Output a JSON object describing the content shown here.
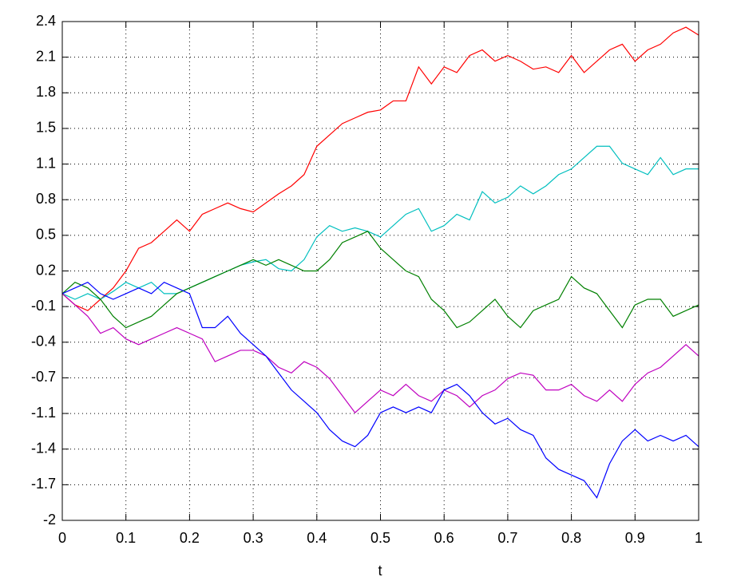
{
  "chart_data": {
    "type": "line",
    "xlabel": "t",
    "x": [
      0,
      0.02,
      0.04,
      0.06,
      0.08,
      0.1,
      0.12,
      0.14,
      0.16,
      0.18,
      0.2,
      0.22,
      0.24,
      0.26,
      0.28,
      0.3,
      0.32,
      0.34,
      0.36,
      0.38,
      0.4,
      0.42,
      0.44,
      0.46,
      0.48,
      0.5,
      0.52,
      0.54,
      0.56,
      0.58,
      0.6,
      0.62,
      0.64,
      0.66,
      0.68,
      0.7,
      0.72,
      0.74,
      0.76,
      0.78,
      0.8,
      0.82,
      0.84,
      0.86,
      0.88,
      0.9,
      0.92,
      0.94,
      0.96,
      0.98,
      1
    ],
    "series": [
      {
        "color": "#ff0000",
        "values": [
          0,
          -0.1,
          -0.15,
          -0.05,
          0.05,
          0.2,
          0.4,
          0.45,
          0.55,
          0.65,
          0.55,
          0.7,
          0.75,
          0.8,
          0.75,
          0.72,
          0.8,
          0.88,
          0.95,
          1.05,
          1.3,
          1.4,
          1.5,
          1.55,
          1.6,
          1.62,
          1.7,
          1.7,
          2.0,
          1.85,
          2.0,
          1.95,
          2.1,
          2.15,
          2.05,
          2.1,
          2.05,
          1.98,
          2.0,
          1.95,
          2.1,
          1.95,
          2.05,
          2.15,
          2.2,
          2.05,
          2.15,
          2.2,
          2.3,
          2.35,
          2.28
        ]
      },
      {
        "color": "#00bfbf",
        "values": [
          0,
          -0.05,
          0,
          -0.05,
          0.02,
          0.1,
          0.05,
          0.1,
          0,
          0,
          0.05,
          0.1,
          0.15,
          0.2,
          0.25,
          0.28,
          0.3,
          0.22,
          0.2,
          0.3,
          0.5,
          0.6,
          0.55,
          0.58,
          0.55,
          0.5,
          0.6,
          0.7,
          0.75,
          0.55,
          0.6,
          0.7,
          0.65,
          0.9,
          0.8,
          0.85,
          0.95,
          0.88,
          0.95,
          1.05,
          1.1,
          1.2,
          1.3,
          1.3,
          1.15,
          1.1,
          1.05,
          1.2,
          1.05,
          1.1,
          1.1
        ]
      },
      {
        "color": "#008000",
        "values": [
          0,
          0.1,
          0.05,
          -0.05,
          -0.2,
          -0.3,
          -0.25,
          -0.2,
          -0.1,
          0,
          0.05,
          0.1,
          0.15,
          0.2,
          0.25,
          0.3,
          0.25,
          0.3,
          0.25,
          0.2,
          0.2,
          0.3,
          0.45,
          0.5,
          0.55,
          0.4,
          0.3,
          0.2,
          0.15,
          -0.05,
          -0.15,
          -0.3,
          -0.25,
          -0.15,
          -0.05,
          -0.2,
          -0.3,
          -0.15,
          -0.1,
          -0.05,
          0.15,
          0.05,
          0,
          -0.15,
          -0.3,
          -0.1,
          -0.05,
          -0.05,
          -0.2,
          -0.15,
          -0.1
        ]
      },
      {
        "color": "#bf00bf",
        "values": [
          0,
          -0.1,
          -0.2,
          -0.35,
          -0.3,
          -0.4,
          -0.45,
          -0.4,
          -0.35,
          -0.3,
          -0.35,
          -0.4,
          -0.6,
          -0.55,
          -0.5,
          -0.5,
          -0.55,
          -0.65,
          -0.7,
          -0.6,
          -0.65,
          -0.75,
          -0.9,
          -1.05,
          -0.95,
          -0.85,
          -0.9,
          -0.8,
          -0.9,
          -0.95,
          -0.85,
          -0.9,
          -1.0,
          -0.9,
          -0.85,
          -0.75,
          -0.7,
          -0.72,
          -0.85,
          -0.85,
          -0.8,
          -0.9,
          -0.95,
          -0.85,
          -0.95,
          -0.8,
          -0.7,
          -0.65,
          -0.55,
          -0.45,
          -0.55
        ]
      },
      {
        "color": "#0000ff",
        "values": [
          0,
          0.05,
          0.1,
          0,
          -0.05,
          0,
          0.05,
          0,
          0.1,
          0.05,
          0,
          -0.3,
          -0.3,
          -0.2,
          -0.35,
          -0.45,
          -0.55,
          -0.7,
          -0.85,
          -0.95,
          -1.05,
          -1.2,
          -1.3,
          -1.35,
          -1.25,
          -1.05,
          -1.0,
          -1.05,
          -1.0,
          -1.05,
          -0.85,
          -0.8,
          -0.9,
          -1.05,
          -1.15,
          -1.1,
          -1.2,
          -1.25,
          -1.45,
          -1.55,
          -1.6,
          -1.65,
          -1.8,
          -1.5,
          -1.3,
          -1.2,
          -1.3,
          -1.25,
          -1.3,
          -1.25,
          -1.35
        ]
      }
    ],
    "xlim": [
      0,
      1
    ],
    "xticks": [
      0,
      0.1,
      0.2,
      0.3,
      0.4,
      0.5,
      0.6,
      0.7,
      0.8,
      0.9,
      1
    ],
    "ylim": [
      -2,
      2.4
    ],
    "yticks": [
      -2,
      {
        "value": -1.6857,
        "label": "-1.7"
      },
      {
        "value": -1.3714,
        "label": "-1.4"
      },
      {
        "value": -1.0571,
        "label": "-1.1"
      },
      {
        "value": -0.7429,
        "label": "-0.7"
      },
      {
        "value": -0.4286,
        "label": "-0.4"
      },
      {
        "value": -0.1143,
        "label": "-0.1"
      },
      0.2,
      {
        "value": 0.5143,
        "label": "0.5"
      },
      {
        "value": 0.8286,
        "label": "0.8"
      },
      {
        "value": 1.1429,
        "label": "1.1"
      },
      {
        "value": 1.4571,
        "label": "1.5"
      },
      {
        "value": 1.7714,
        "label": "1.8"
      },
      {
        "value": 2.0857,
        "label": "2.1"
      },
      2.4
    ],
    "grid": true
  }
}
